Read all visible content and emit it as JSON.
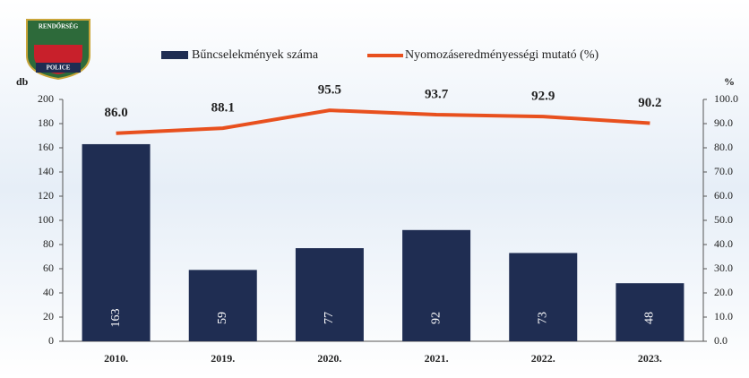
{
  "logo": {
    "top": "RENDŐRSÉG",
    "bottom": "POLICE"
  },
  "chart_data": {
    "type": "bar-line",
    "y_label": "db",
    "y2_label": "%",
    "categories": [
      "2010.",
      "2019.",
      "2020.",
      "2021.",
      "2022.",
      "2023."
    ],
    "series": [
      {
        "name": "Bűncselekmények száma",
        "color": "#1f2d52",
        "type": "bar",
        "values": [
          163,
          59,
          77,
          92,
          73,
          48
        ]
      },
      {
        "name": "Nyomozáseredményességi mutató (%)",
        "color": "#e8501e",
        "type": "line",
        "axis": "y2",
        "values": [
          86.0,
          88.1,
          95.5,
          93.7,
          92.9,
          90.2
        ],
        "value_labels": [
          "86.0",
          "88.1",
          "95.5",
          "93.7",
          "92.9",
          "90.2"
        ]
      }
    ],
    "ylim": [
      0,
      200
    ],
    "yticks": [
      0,
      20,
      40,
      60,
      80,
      100,
      120,
      140,
      160,
      180,
      200
    ],
    "y2lim": [
      0,
      100
    ],
    "y2ticks": [
      {
        "value": 0,
        "label": "0.0"
      },
      {
        "value": 10,
        "label": "10.0"
      },
      {
        "value": 20,
        "label": "20.0"
      },
      {
        "value": 30,
        "label": "30.0"
      },
      {
        "value": 40,
        "label": "40.0"
      },
      {
        "value": 50,
        "label": "50.0"
      },
      {
        "value": 60,
        "label": "60.0"
      },
      {
        "value": 70,
        "label": "70.0"
      },
      {
        "value": 80,
        "label": "80.0"
      },
      {
        "value": 90,
        "label": "90.0"
      },
      {
        "value": 100,
        "label": "100.0"
      }
    ]
  }
}
